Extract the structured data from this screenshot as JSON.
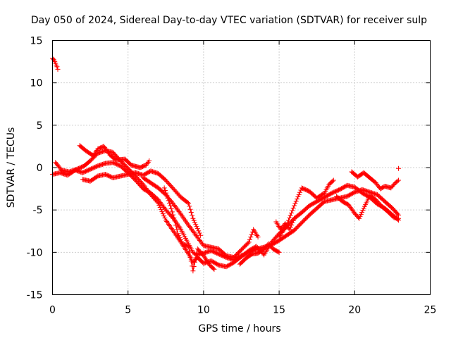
{
  "chart_data": {
    "type": "scatter",
    "title": "Day 050 of 2024, Sidereal Day-to-day VTEC variation (SDTVAR) for receiver sulp",
    "xlabel": "GPS time / hours",
    "ylabel": "SDTVAR / TECUs",
    "xlim": [
      0,
      25
    ],
    "ylim": [
      -15,
      15
    ],
    "xticks": [
      0,
      5,
      10,
      15,
      20,
      25
    ],
    "yticks": [
      -15,
      -10,
      -5,
      0,
      5,
      10,
      15
    ],
    "grid": true,
    "marker": "+",
    "color": "#ff0000",
    "series": [
      {
        "name": "early",
        "points": [
          [
            0.0,
            12.9
          ],
          [
            0.1,
            12.7
          ],
          [
            0.2,
            12.3
          ],
          [
            0.3,
            11.9
          ],
          [
            0.35,
            11.6
          ]
        ]
      },
      {
        "name": "trace-a",
        "points": [
          [
            0.0,
            -0.8
          ],
          [
            0.5,
            -0.6
          ],
          [
            1.0,
            -0.9
          ],
          [
            1.5,
            -0.3
          ],
          [
            2.0,
            -0.6
          ],
          [
            2.5,
            -0.2
          ],
          [
            3.0,
            0.2
          ],
          [
            3.5,
            0.5
          ],
          [
            4.0,
            0.6
          ],
          [
            4.5,
            0.2
          ],
          [
            5.0,
            -0.6
          ],
          [
            5.5,
            -1.5
          ],
          [
            6.0,
            -2.5
          ],
          [
            6.5,
            -3.0
          ],
          [
            7.0,
            -3.8
          ],
          [
            7.5,
            -5.0
          ],
          [
            8.0,
            -6.0
          ],
          [
            8.5,
            -7.3
          ],
          [
            9.0,
            -9.0
          ],
          [
            9.3,
            -10.0
          ],
          [
            9.5,
            -10.3
          ],
          [
            10.0,
            -10.1
          ],
          [
            10.5,
            -9.8
          ],
          [
            11.0,
            -10.2
          ],
          [
            11.5,
            -10.6
          ],
          [
            12.0,
            -10.9
          ],
          [
            12.5,
            -10.4
          ],
          [
            13.0,
            -10.0
          ],
          [
            13.5,
            -9.6
          ],
          [
            14.0,
            -9.4
          ],
          [
            14.5,
            -9.1
          ],
          [
            15.0,
            -8.6
          ],
          [
            15.5,
            -8.0
          ],
          [
            16.0,
            -7.4
          ],
          [
            16.5,
            -6.5
          ],
          [
            17.0,
            -5.6
          ],
          [
            17.5,
            -4.8
          ],
          [
            18.0,
            -4.0
          ],
          [
            18.5,
            -3.8
          ],
          [
            19.0,
            -3.6
          ],
          [
            19.5,
            -3.4
          ],
          [
            20.0,
            -2.9
          ],
          [
            20.5,
            -2.6
          ],
          [
            21.0,
            -2.9
          ],
          [
            21.5,
            -3.2
          ],
          [
            22.0,
            -4.0
          ],
          [
            22.5,
            -4.8
          ],
          [
            22.9,
            -5.6
          ]
        ]
      },
      {
        "name": "trace-b",
        "points": [
          [
            0.2,
            0.6
          ],
          [
            0.6,
            -0.3
          ],
          [
            1.1,
            -0.5
          ],
          [
            1.6,
            -0.2
          ],
          [
            2.1,
            0.2
          ],
          [
            2.5,
            0.8
          ],
          [
            3.0,
            1.7
          ],
          [
            3.5,
            2.0
          ],
          [
            4.0,
            1.8
          ],
          [
            4.5,
            0.8
          ],
          [
            5.0,
            -0.1
          ],
          [
            5.5,
            -1.0
          ],
          [
            6.0,
            -2.0
          ],
          [
            6.5,
            -3.2
          ],
          [
            7.0,
            -4.2
          ],
          [
            7.5,
            -6.2
          ],
          [
            8.0,
            -7.5
          ],
          [
            8.5,
            -8.8
          ],
          [
            9.0,
            -10.2
          ],
          [
            9.3,
            -11.2
          ],
          [
            9.6,
            -10.6
          ],
          [
            10.0,
            -11.3
          ],
          [
            10.5,
            -11.0
          ],
          [
            11.0,
            -11.5
          ],
          [
            11.5,
            -11.7
          ],
          [
            12.0,
            -11.2
          ],
          [
            12.5,
            -10.5
          ],
          [
            13.0,
            -9.8
          ],
          [
            13.5,
            -9.3
          ],
          [
            14.0,
            -10.3
          ],
          [
            14.5,
            -8.8
          ],
          [
            15.0,
            -7.8
          ],
          [
            15.5,
            -7.0
          ],
          [
            16.0,
            -6.0
          ],
          [
            16.5,
            -5.3
          ],
          [
            17.0,
            -4.5
          ],
          [
            17.5,
            -4.0
          ],
          [
            18.0,
            -3.5
          ],
          [
            18.5,
            -3.0
          ],
          [
            19.0,
            -2.6
          ],
          [
            19.5,
            -2.1
          ],
          [
            20.0,
            -2.3
          ],
          [
            20.5,
            -3.0
          ],
          [
            21.0,
            -3.5
          ],
          [
            21.5,
            -4.3
          ],
          [
            22.0,
            -4.8
          ],
          [
            22.5,
            -5.6
          ],
          [
            22.9,
            -6.2
          ]
        ]
      },
      {
        "name": "trace-c",
        "points": [
          [
            1.8,
            2.6
          ],
          [
            2.2,
            2.0
          ],
          [
            2.7,
            1.4
          ],
          [
            3.0,
            2.2
          ],
          [
            3.4,
            2.5
          ],
          [
            3.8,
            1.5
          ],
          [
            4.2,
            0.9
          ],
          [
            4.8,
            1.0
          ],
          [
            5.2,
            0.3
          ],
          [
            5.8,
            0.0
          ],
          [
            6.2,
            0.3
          ],
          [
            6.4,
            0.8
          ]
        ]
      },
      {
        "name": "trace-d",
        "points": [
          [
            2.0,
            -1.4
          ],
          [
            2.5,
            -1.6
          ],
          [
            3.0,
            -1.0
          ],
          [
            3.5,
            -0.8
          ],
          [
            4.0,
            -1.2
          ],
          [
            4.5,
            -1.0
          ],
          [
            5.0,
            -0.8
          ],
          [
            5.5,
            -0.6
          ],
          [
            6.0,
            -0.9
          ],
          [
            6.5,
            -0.4
          ],
          [
            7.0,
            -0.7
          ],
          [
            7.5,
            -1.5
          ],
          [
            8.0,
            -2.5
          ],
          [
            8.5,
            -3.5
          ],
          [
            9.0,
            -4.2
          ],
          [
            9.3,
            -6.0
          ],
          [
            9.6,
            -7.2
          ],
          [
            9.8,
            -8.0
          ]
        ]
      },
      {
        "name": "trace-e",
        "points": [
          [
            6.0,
            -1.2
          ],
          [
            6.5,
            -1.8
          ],
          [
            7.0,
            -2.4
          ],
          [
            7.5,
            -3.2
          ],
          [
            8.0,
            -4.3
          ],
          [
            8.5,
            -5.5
          ],
          [
            9.0,
            -6.8
          ],
          [
            9.5,
            -8.0
          ],
          [
            10.0,
            -9.2
          ],
          [
            10.5,
            -9.4
          ],
          [
            11.0,
            -9.6
          ],
          [
            11.5,
            -10.4
          ],
          [
            12.0,
            -10.6
          ],
          [
            12.5,
            -9.7
          ],
          [
            13.0,
            -8.8
          ],
          [
            13.3,
            -7.3
          ],
          [
            13.6,
            -8.2
          ]
        ]
      },
      {
        "name": "trace-f",
        "points": [
          [
            7.4,
            -2.4
          ],
          [
            7.8,
            -4.5
          ],
          [
            8.1,
            -6.3
          ],
          [
            8.3,
            -7.8
          ],
          [
            8.6,
            -9.0
          ],
          [
            9.0,
            -9.3
          ],
          [
            9.3,
            -12.2
          ],
          [
            9.6,
            -9.6
          ],
          [
            10.0,
            -10.4
          ],
          [
            10.4,
            -11.5
          ],
          [
            10.7,
            -12.0
          ]
        ]
      },
      {
        "name": "trace-g",
        "points": [
          [
            15.0,
            -8.2
          ],
          [
            15.5,
            -6.8
          ],
          [
            16.0,
            -4.5
          ],
          [
            16.5,
            -2.4
          ],
          [
            17.0,
            -2.8
          ],
          [
            17.5,
            -3.6
          ],
          [
            18.0,
            -3.0
          ],
          [
            18.3,
            -2.0
          ],
          [
            18.6,
            -1.5
          ]
        ]
      },
      {
        "name": "trace-h",
        "points": [
          [
            19.8,
            -0.5
          ],
          [
            20.2,
            -1.1
          ],
          [
            20.6,
            -0.6
          ],
          [
            21.0,
            -1.2
          ],
          [
            21.4,
            -1.8
          ],
          [
            21.7,
            -2.5
          ],
          [
            22.0,
            -2.2
          ],
          [
            22.4,
            -2.4
          ],
          [
            22.7,
            -1.8
          ],
          [
            22.9,
            -1.5
          ]
        ]
      },
      {
        "name": "trace-i",
        "points": [
          [
            18.8,
            -3.4
          ],
          [
            19.2,
            -4.0
          ],
          [
            19.6,
            -4.4
          ],
          [
            20.0,
            -5.4
          ],
          [
            20.3,
            -6.0
          ],
          [
            20.6,
            -4.8
          ],
          [
            21.0,
            -3.3
          ],
          [
            21.4,
            -3.8
          ],
          [
            21.8,
            -4.6
          ],
          [
            22.2,
            -5.2
          ],
          [
            22.6,
            -5.9
          ],
          [
            22.9,
            -6.0
          ]
        ]
      },
      {
        "name": "trace-j",
        "points": [
          [
            12.4,
            -11.4
          ],
          [
            12.8,
            -10.7
          ],
          [
            13.2,
            -10.2
          ],
          [
            13.6,
            -10.1
          ],
          [
            14.0,
            -9.6
          ],
          [
            14.3,
            -9.0
          ],
          [
            14.6,
            -9.6
          ],
          [
            15.0,
            -10.0
          ]
        ]
      },
      {
        "name": "trace-k",
        "points": [
          [
            14.8,
            -6.4
          ],
          [
            15.1,
            -7.3
          ],
          [
            15.4,
            -6.6
          ],
          [
            15.7,
            -7.3
          ],
          [
            16.0,
            -6.0
          ]
        ]
      },
      {
        "name": "outlier",
        "points": [
          [
            22.9,
            -0.1
          ]
        ]
      }
    ]
  }
}
